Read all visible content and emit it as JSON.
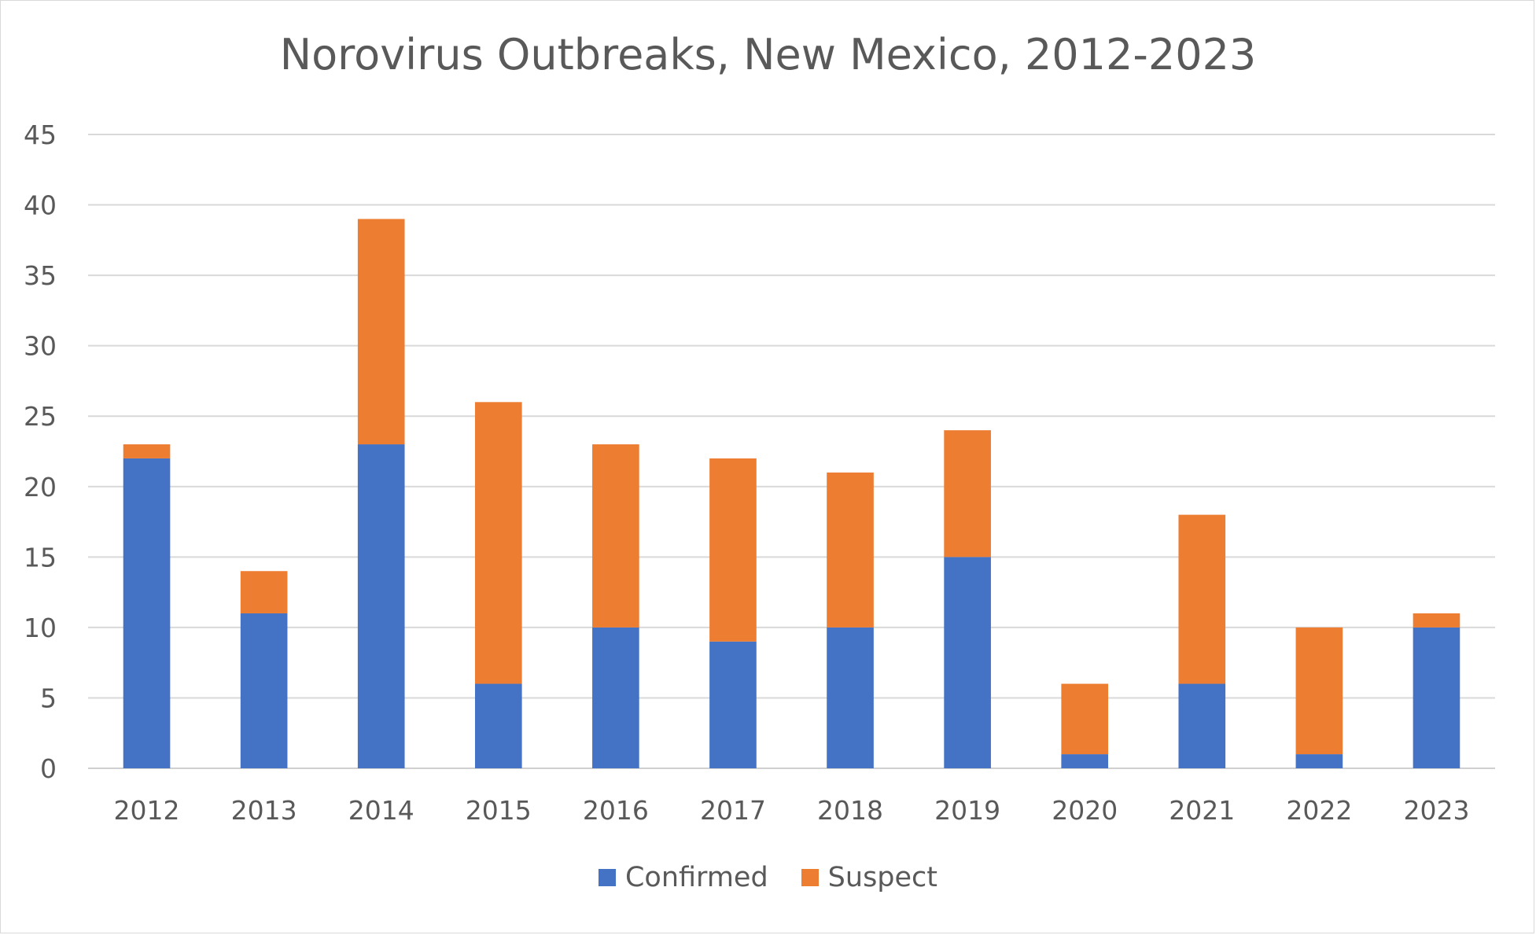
{
  "chart_data": {
    "type": "bar",
    "stacked": true,
    "title": "Norovirus Outbreaks, New Mexico, 2012-2023",
    "xlabel": "",
    "ylabel": "",
    "categories": [
      "2012",
      "2013",
      "2014",
      "2015",
      "2016",
      "2017",
      "2018",
      "2019",
      "2020",
      "2021",
      "2022",
      "2023"
    ],
    "series": [
      {
        "name": "Confirmed",
        "color": "#4472c4",
        "values": [
          22,
          11,
          23,
          6,
          10,
          9,
          10,
          15,
          1,
          6,
          1,
          10
        ]
      },
      {
        "name": "Suspect",
        "color": "#ed7d31",
        "values": [
          1,
          3,
          16,
          20,
          13,
          13,
          11,
          9,
          5,
          12,
          9,
          1
        ]
      }
    ],
    "ylim": [
      0,
      45
    ],
    "yticks": [
      0,
      5,
      10,
      15,
      20,
      25,
      30,
      35,
      40,
      45
    ],
    "grid": true,
    "legend_position": "bottom"
  }
}
